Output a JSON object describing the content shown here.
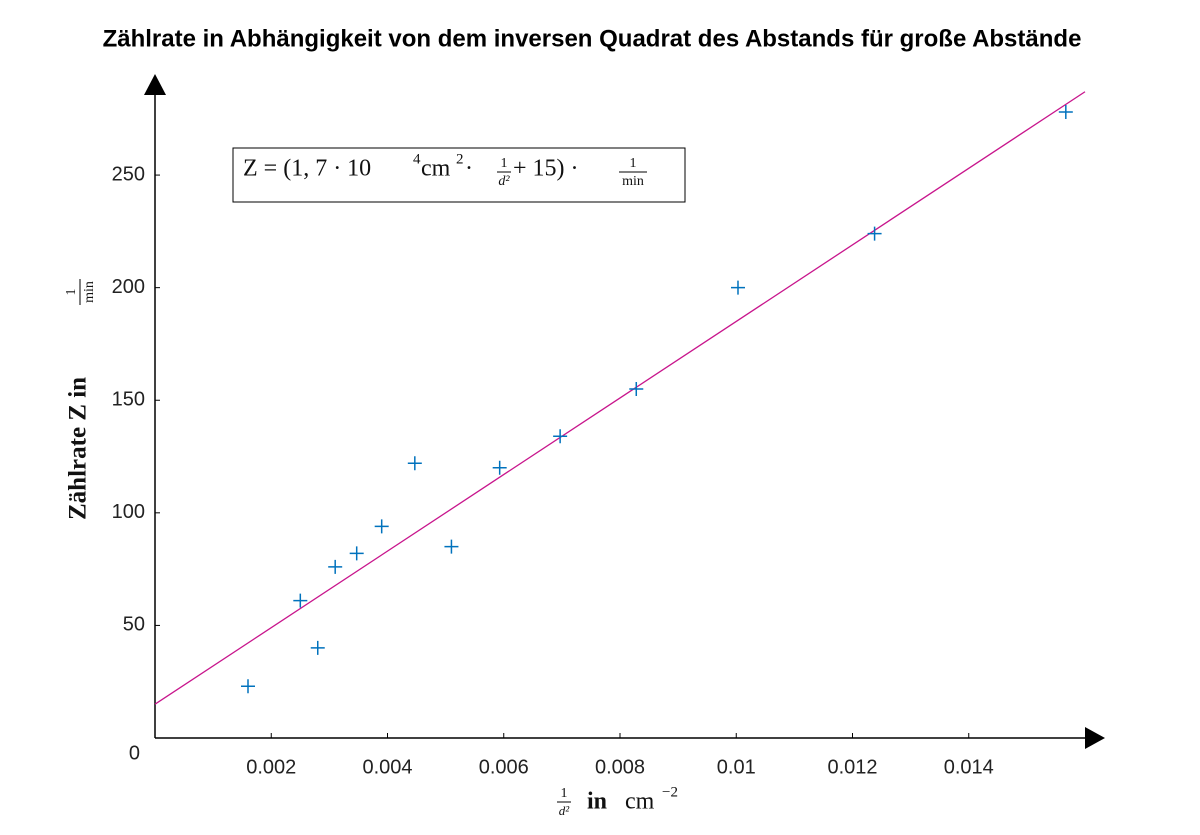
{
  "chart_data": {
    "type": "scatter",
    "title": "Zählrate in Abhängigkeit von dem inversen Quadrat des Abstands für große Abstände",
    "xlabel": [
      "1",
      "d²",
      "in",
      "cm",
      "−2"
    ],
    "ylabel": [
      "Zählrate Z in",
      "1",
      "min"
    ],
    "annotation": [
      "Z = (1, 7 · 10",
      "4",
      " cm",
      "2",
      " · ",
      "1",
      "d²",
      " + 15) · ",
      "1",
      "min"
    ],
    "fit": {
      "slope": 17000,
      "intercept": 15,
      "color": "#c8158c"
    },
    "x": [
      0.0016,
      0.0025,
      0.0028,
      0.0031,
      0.00347,
      0.0039,
      0.00447,
      0.0051,
      0.00593,
      0.00697,
      0.00828,
      0.01003,
      0.01238,
      0.01567
    ],
    "series": [
      {
        "color": "#0072bd",
        "values": [
          23,
          61,
          40,
          76,
          82,
          94,
          122,
          85,
          120,
          134,
          155,
          200,
          224,
          278
        ]
      }
    ],
    "xlim": [
      0,
      0.016
    ],
    "ylim": [
      0,
      290
    ],
    "xticks": [
      0.002,
      0.004,
      0.006,
      0.008,
      0.01,
      0.012,
      0.014
    ],
    "yticks": [
      0,
      50,
      100,
      150,
      200,
      250
    ]
  }
}
